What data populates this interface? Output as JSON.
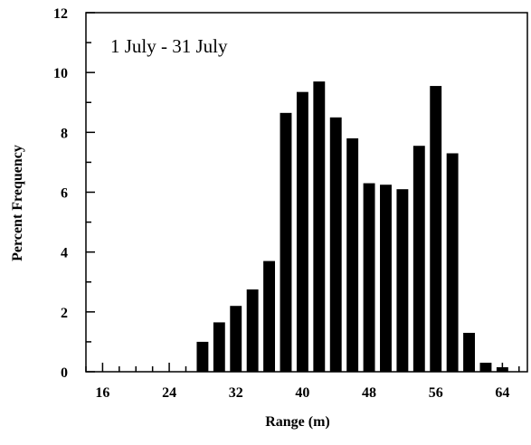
{
  "chart_data": {
    "type": "bar",
    "annotation": "1 July - 31 July",
    "xlabel": "Range (m)",
    "ylabel": "Percent Frequency",
    "xlim": [
      14,
      67
    ],
    "ylim": [
      0,
      12
    ],
    "x_ticks": [
      16,
      24,
      32,
      40,
      48,
      56,
      64
    ],
    "y_ticks": [
      0,
      2,
      4,
      6,
      8,
      10,
      12
    ],
    "x_minor_step": 2,
    "y_minor_step": 1,
    "bar_width": 1.4,
    "bar_color": "#000000",
    "grid": false,
    "bars": [
      {
        "x": 28,
        "y": 1.0
      },
      {
        "x": 30,
        "y": 1.65
      },
      {
        "x": 32,
        "y": 2.2
      },
      {
        "x": 34,
        "y": 2.75
      },
      {
        "x": 36,
        "y": 3.7
      },
      {
        "x": 38,
        "y": 8.65
      },
      {
        "x": 40,
        "y": 9.35
      },
      {
        "x": 42,
        "y": 9.7
      },
      {
        "x": 44,
        "y": 8.5
      },
      {
        "x": 46,
        "y": 7.8
      },
      {
        "x": 48,
        "y": 6.3
      },
      {
        "x": 50,
        "y": 6.25
      },
      {
        "x": 52,
        "y": 6.1
      },
      {
        "x": 54,
        "y": 7.55
      },
      {
        "x": 56,
        "y": 9.55
      },
      {
        "x": 58,
        "y": 7.3
      },
      {
        "x": 60,
        "y": 1.3
      },
      {
        "x": 62,
        "y": 0.3
      },
      {
        "x": 64,
        "y": 0.15
      }
    ]
  }
}
